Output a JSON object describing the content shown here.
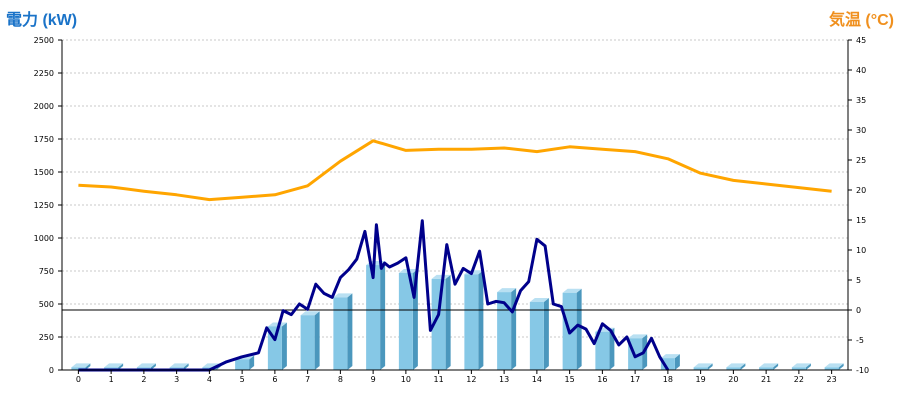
{
  "chart_data": {
    "type": "bar",
    "left_axis_title": "電力 (kW)",
    "right_axis_title": "気温 (°C)",
    "colors": {
      "left_title": "#1a73c8",
      "right_title": "#f0901e",
      "bar_front": "#86c8e6",
      "bar_side": "#4b97bd",
      "bar_top": "#b9e0f2",
      "power_line": "#00008b",
      "temp_line": "#ffa500",
      "grid": "#c8c8c8"
    },
    "grid": true,
    "y_left": {
      "min": 0,
      "max": 2500,
      "ticks": [
        0,
        250,
        500,
        750,
        1000,
        1250,
        1500,
        1750,
        2000,
        2250,
        2500
      ]
    },
    "y_right": {
      "min": -10,
      "max": 45,
      "ticks": [
        -10,
        -5,
        0,
        5,
        10,
        15,
        20,
        25,
        30,
        35,
        40,
        45
      ]
    },
    "categories": [
      "0",
      "1",
      "2",
      "3",
      "4",
      "5",
      "6",
      "7",
      "8",
      "9",
      "10",
      "11",
      "12",
      "13",
      "14",
      "15",
      "16",
      "17",
      "18",
      "19",
      "20",
      "21",
      "22",
      "23"
    ],
    "series": [
      {
        "kind": "bar",
        "axis": "left",
        "values": [
          20,
          20,
          20,
          20,
          20,
          80,
          330,
          415,
          550,
          795,
          735,
          690,
          725,
          590,
          515,
          585,
          290,
          240,
          90,
          20,
          20,
          20,
          20,
          20
        ]
      },
      {
        "kind": "line",
        "axis": "left",
        "x": [
          0,
          1,
          2,
          3,
          4,
          4.5,
          5,
          5.5,
          5.75,
          6,
          6.25,
          6.5,
          6.75,
          7,
          7.25,
          7.5,
          7.75,
          8,
          8.25,
          8.5,
          8.75,
          9,
          9.1,
          9.25,
          9.35,
          9.5,
          9.75,
          10,
          10.25,
          10.5,
          10.75,
          11,
          11.25,
          11.5,
          11.75,
          12,
          12.25,
          12.5,
          12.75,
          13,
          13.25,
          13.5,
          13.75,
          14,
          14.25,
          14.5,
          14.75,
          15,
          15.25,
          15.5,
          15.75,
          16,
          16.25,
          16.5,
          16.75,
          17,
          17.25,
          17.5,
          17.75,
          18
        ],
        "values": [
          0,
          0,
          0,
          0,
          0,
          60,
          100,
          130,
          320,
          230,
          450,
          420,
          500,
          460,
          650,
          580,
          550,
          700,
          760,
          840,
          1050,
          700,
          1100,
          770,
          810,
          780,
          810,
          850,
          550,
          1130,
          300,
          420,
          950,
          650,
          770,
          730,
          900,
          500,
          520,
          510,
          440,
          600,
          670,
          990,
          940,
          500,
          480,
          280,
          340,
          310,
          200,
          350,
          300,
          190,
          250,
          100,
          130,
          240,
          100,
          0
        ]
      },
      {
        "kind": "line",
        "axis": "right",
        "values": [
          20.8,
          20.5,
          19.8,
          19.2,
          18.4,
          18.8,
          19.2,
          20.7,
          24.8,
          28.2,
          26.6,
          26.8,
          26.8,
          27.0,
          26.4,
          27.2,
          26.8,
          26.4,
          25.2,
          22.8,
          21.6,
          21.0,
          20.4,
          19.8
        ]
      }
    ]
  }
}
